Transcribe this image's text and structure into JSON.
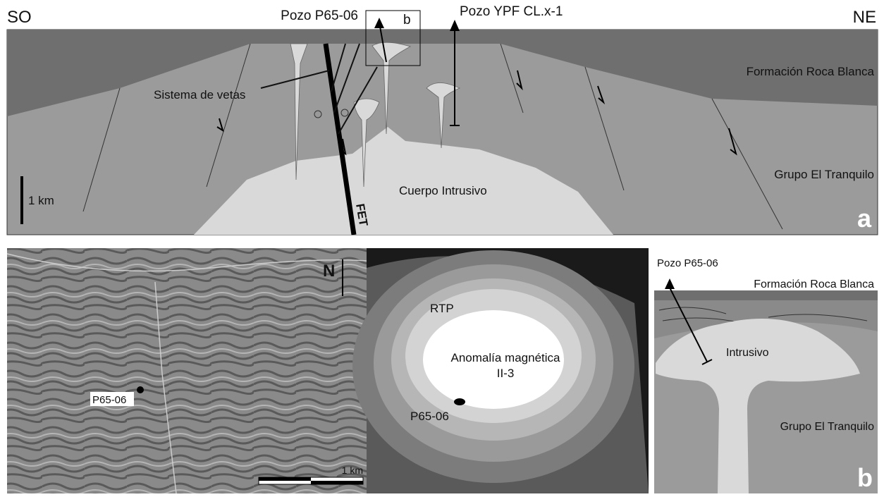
{
  "section": {
    "left_label": "SO",
    "right_label": "NE",
    "well_1": "Pozo P65-06",
    "inset_label": "b",
    "well_2": "Pozo YPF CL.x-1",
    "unit_top": "Formación Roca Blanca",
    "veins": "Sistema de vetas",
    "unit_bottom": "Grupo El Tranquilo",
    "scale": "1 km",
    "intrusive": "Cuerpo Intrusivo",
    "fault": "FET",
    "panel_letter": "a"
  },
  "image": {
    "north": "N",
    "well": "P65-06",
    "scale": "1 km"
  },
  "magnetic": {
    "filter": "RTP",
    "anomaly_line1": "Anomalía magnética",
    "anomaly_line2": "II-3",
    "well": "P65-06"
  },
  "detail": {
    "well": "Pozo P65-06",
    "unit_top": "Formación Roca Blanca",
    "intrusive": "Intrusivo",
    "unit_bottom": "Grupo El Tranquilo",
    "panel_letter": "b"
  }
}
